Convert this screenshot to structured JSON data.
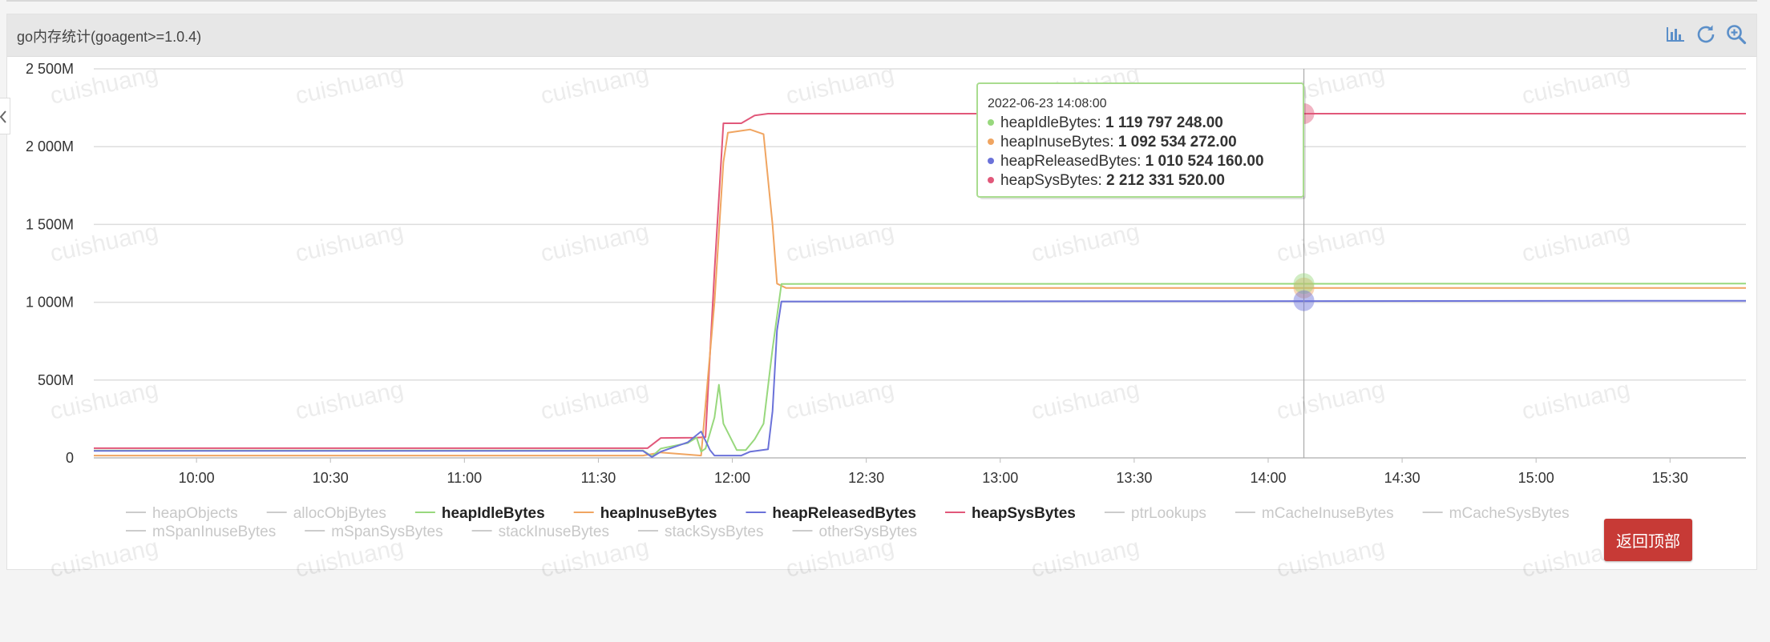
{
  "panel": {
    "title": "go内存统计(goagent>=1.0.4)"
  },
  "toolbar": {
    "icons": [
      "bar-chart-icon",
      "refresh-icon",
      "zoom-icon"
    ]
  },
  "watermark": "cuishuang",
  "back_to_top": "返回顶部",
  "tooltip": {
    "time": "2022-06-23 14:08:00",
    "rows": [
      {
        "name": "heapIdleBytes",
        "value": "1 119 797 248.00",
        "color": "#98d87d"
      },
      {
        "name": "heapInuseBytes",
        "value": "1 092 534 272.00",
        "color": "#f0a561"
      },
      {
        "name": "heapReleasedBytes",
        "value": "1 010 524 160.00",
        "color": "#6b72d9"
      },
      {
        "name": "heapSysBytes",
        "value": "2 212 331 520.00",
        "color": "#e1587a"
      }
    ]
  },
  "chart_data": {
    "type": "line",
    "x_unit": "time (2022-06-23)",
    "ylim": [
      0,
      2500
    ],
    "yticks": [
      {
        "value": 0,
        "label": "0"
      },
      {
        "value": 500,
        "label": "500M"
      },
      {
        "value": 1000,
        "label": "1 000M"
      },
      {
        "value": 1500,
        "label": "1 500M"
      },
      {
        "value": 2000,
        "label": "2 000M"
      },
      {
        "value": 2500,
        "label": "2 500M"
      }
    ],
    "xlim": [
      "09:37",
      "15:47"
    ],
    "xticks": [
      "10:00",
      "10:30",
      "11:00",
      "11:30",
      "12:00",
      "12:30",
      "13:00",
      "13:30",
      "14:00",
      "14:30",
      "15:00",
      "15:30"
    ],
    "crosshair_x": "14:08",
    "grid": true,
    "legend_position": "bottom",
    "legend": [
      {
        "name": "heapObjects",
        "color": "#cccccc",
        "active": false
      },
      {
        "name": "allocObjBytes",
        "color": "#cccccc",
        "active": false
      },
      {
        "name": "heapIdleBytes",
        "color": "#98d87d",
        "active": true
      },
      {
        "name": "heapInuseBytes",
        "color": "#f0a561",
        "active": true
      },
      {
        "name": "heapReleasedBytes",
        "color": "#6b72d9",
        "active": true
      },
      {
        "name": "heapSysBytes",
        "color": "#e1587a",
        "active": true
      },
      {
        "name": "ptrLookups",
        "color": "#cccccc",
        "active": false
      },
      {
        "name": "mCacheInuseBytes",
        "color": "#cccccc",
        "active": false
      },
      {
        "name": "mCacheSysBytes",
        "color": "#cccccc",
        "active": false
      },
      {
        "name": "mSpanInuseBytes",
        "color": "#cccccc",
        "active": false
      },
      {
        "name": "mSpanSysBytes",
        "color": "#cccccc",
        "active": false
      },
      {
        "name": "stackInuseBytes",
        "color": "#cccccc",
        "active": false
      },
      {
        "name": "stackSysBytes",
        "color": "#cccccc",
        "active": false
      },
      {
        "name": "otherSysBytes",
        "color": "#cccccc",
        "active": false
      }
    ],
    "series": [
      {
        "name": "heapSysBytes",
        "color": "#e1587a",
        "points": [
          [
            "09:37",
            62
          ],
          [
            "11:41",
            62
          ],
          [
            "11:44",
            128
          ],
          [
            "11:52",
            130
          ],
          [
            "11:54",
            134
          ],
          [
            "11:56",
            1200
          ],
          [
            "11:58",
            2150
          ],
          [
            "12:02",
            2150
          ],
          [
            "12:05",
            2200
          ],
          [
            "12:08",
            2212
          ],
          [
            "15:47",
            2212
          ]
        ]
      },
      {
        "name": "heapInuseBytes",
        "color": "#f0a561",
        "points": [
          [
            "09:37",
            15
          ],
          [
            "11:40",
            15
          ],
          [
            "11:44",
            35
          ],
          [
            "11:53",
            15
          ],
          [
            "11:56",
            1000
          ],
          [
            "11:58",
            1900
          ],
          [
            "11:59",
            2090
          ],
          [
            "12:04",
            2110
          ],
          [
            "12:07",
            2080
          ],
          [
            "12:09",
            1500
          ],
          [
            "12:10",
            1120
          ],
          [
            "12:12",
            1092
          ],
          [
            "15:47",
            1092
          ]
        ]
      },
      {
        "name": "heapIdleBytes",
        "color": "#98d87d",
        "points": [
          [
            "09:37",
            48
          ],
          [
            "11:40",
            48
          ],
          [
            "11:42",
            10
          ],
          [
            "11:44",
            60
          ],
          [
            "11:50",
            95
          ],
          [
            "11:52",
            130
          ],
          [
            "11:53",
            40
          ],
          [
            "11:54",
            60
          ],
          [
            "11:56",
            260
          ],
          [
            "11:57",
            470
          ],
          [
            "11:58",
            220
          ],
          [
            "12:01",
            50
          ],
          [
            "12:03",
            50
          ],
          [
            "12:05",
            120
          ],
          [
            "12:07",
            220
          ],
          [
            "12:09",
            700
          ],
          [
            "12:11",
            1118
          ],
          [
            "15:47",
            1120
          ]
        ]
      },
      {
        "name": "heapReleasedBytes",
        "color": "#6b72d9",
        "points": [
          [
            "09:37",
            45
          ],
          [
            "11:40",
            45
          ],
          [
            "11:42",
            5
          ],
          [
            "11:44",
            40
          ],
          [
            "11:50",
            100
          ],
          [
            "11:53",
            170
          ],
          [
            "11:55",
            50
          ],
          [
            "11:56",
            15
          ],
          [
            "12:02",
            15
          ],
          [
            "12:04",
            40
          ],
          [
            "12:08",
            55
          ],
          [
            "12:09",
            300
          ],
          [
            "12:10",
            820
          ],
          [
            "12:11",
            1005
          ],
          [
            "15:47",
            1010
          ]
        ]
      }
    ]
  }
}
